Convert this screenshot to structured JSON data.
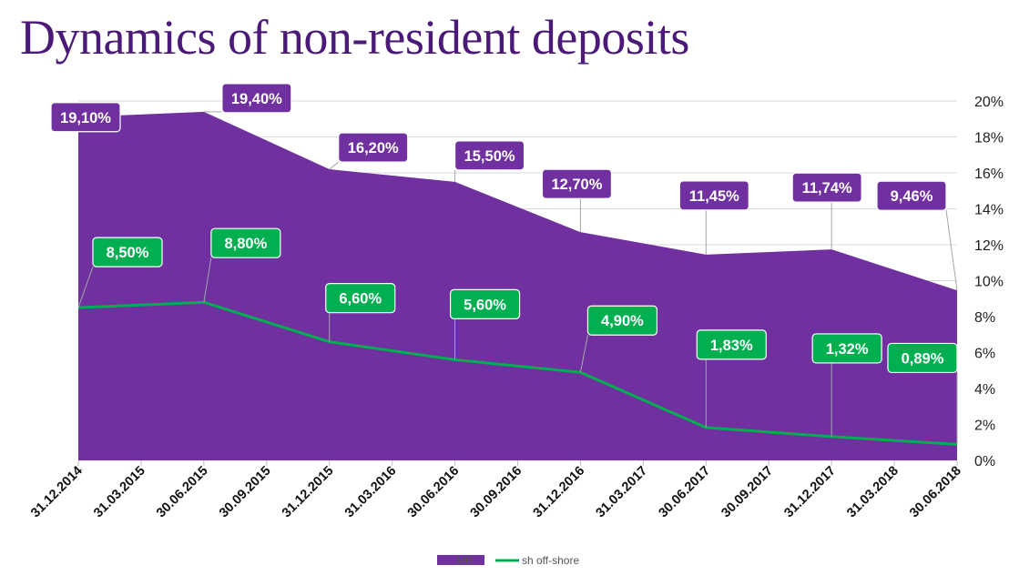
{
  "title": "Dynamics of non-resident deposits",
  "chart_data": {
    "type": "area",
    "categories": [
      "31.12.2014",
      "31.03.2015",
      "30.06.2015",
      "30.09.2015",
      "31.12.2015",
      "31.03.2016",
      "30.06.2016",
      "30.09.2016",
      "31.12.2016",
      "31.03.2017",
      "30.06.2017",
      "30.09.2017",
      "31.12.2017",
      "31.03.2018",
      "30.06.2018"
    ],
    "ylim": [
      0,
      20
    ],
    "yticks": [
      "0%",
      "2%",
      "4%",
      "6%",
      "8%",
      "10%",
      "12%",
      "14%",
      "16%",
      "18%",
      "20%"
    ],
    "y_axis_position": "right",
    "grid": true,
    "legend_position": "bottom",
    "series": [
      {
        "name": "MR",
        "kind": "area",
        "color": "#7030a0",
        "points": [
          {
            "x": "31.12.2014",
            "y": 19.1,
            "label": "19,10%"
          },
          {
            "x": "30.06.2015",
            "y": 19.4,
            "label": "19,40%"
          },
          {
            "x": "31.12.2015",
            "y": 16.2,
            "label": "16,20%"
          },
          {
            "x": "30.06.2016",
            "y": 15.5,
            "label": "15,50%"
          },
          {
            "x": "31.12.2016",
            "y": 12.7,
            "label": "12,70%"
          },
          {
            "x": "30.06.2017",
            "y": 11.45,
            "label": "11,45%"
          },
          {
            "x": "31.12.2017",
            "y": 11.74,
            "label": "11,74%"
          },
          {
            "x": "30.06.2018",
            "y": 9.46,
            "label": "9,46%"
          }
        ]
      },
      {
        "name": "sh off-shore",
        "kind": "line",
        "color": "#00b050",
        "points": [
          {
            "x": "31.12.2014",
            "y": 8.5,
            "label": "8,50%"
          },
          {
            "x": "30.06.2015",
            "y": 8.8,
            "label": "8,80%"
          },
          {
            "x": "31.12.2015",
            "y": 6.6,
            "label": "6,60%"
          },
          {
            "x": "30.06.2016",
            "y": 5.6,
            "label": "5,60%"
          },
          {
            "x": "31.12.2016",
            "y": 4.9,
            "label": "4,90%"
          },
          {
            "x": "30.06.2017",
            "y": 1.83,
            "label": "1,83%"
          },
          {
            "x": "31.12.2017",
            "y": 1.32,
            "label": "1,32%"
          },
          {
            "x": "30.06.2018",
            "y": 0.89,
            "label": "0,89%"
          }
        ]
      }
    ]
  }
}
